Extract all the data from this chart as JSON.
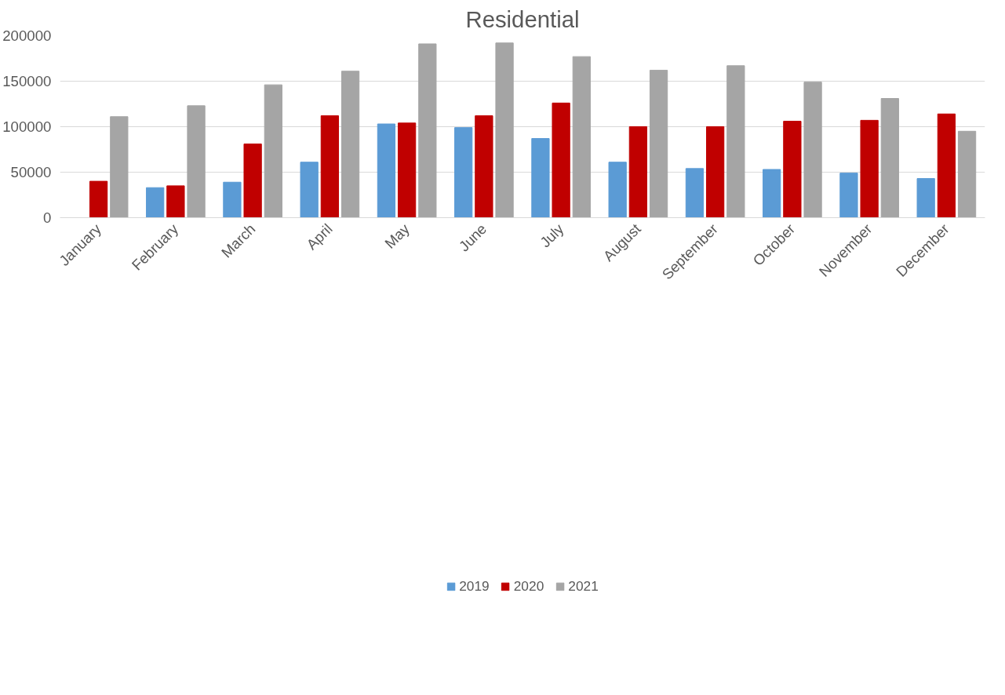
{
  "chart_data": {
    "type": "bar",
    "title": "Residential",
    "categories": [
      "January",
      "February",
      "March",
      "April",
      "May",
      "June",
      "July",
      "August",
      "September",
      "October",
      "November",
      "December"
    ],
    "series": [
      {
        "name": "2019",
        "color": "#5b9bd5",
        "values": [
          null,
          33000,
          39000,
          61000,
          103000,
          99000,
          87000,
          61000,
          54000,
          53000,
          49000,
          43000
        ]
      },
      {
        "name": "2020",
        "color": "#c00000",
        "values": [
          40000,
          35000,
          81000,
          112000,
          104000,
          112000,
          126000,
          100000,
          100000,
          106000,
          107000,
          114000
        ]
      },
      {
        "name": "2021",
        "color": "#a5a5a5",
        "values": [
          111000,
          123000,
          146000,
          161000,
          191000,
          192000,
          177000,
          162000,
          167000,
          149000,
          131000,
          95000
        ]
      }
    ],
    "ylim": [
      0,
      200000
    ],
    "yticks": [
      0,
      50000,
      100000,
      150000,
      200000
    ],
    "grid": "y",
    "legend": "bottom"
  }
}
